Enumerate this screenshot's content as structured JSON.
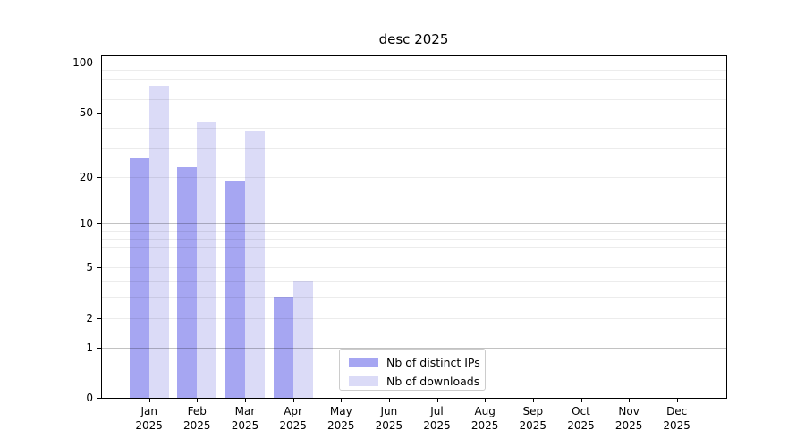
{
  "page": {
    "background": "#ffffff"
  },
  "chart_data": {
    "type": "bar",
    "title": "desc 2025",
    "categories": [
      "Jan",
      "Feb",
      "Mar",
      "Apr",
      "May",
      "Jun",
      "Jul",
      "Aug",
      "Sep",
      "Oct",
      "Nov",
      "Dec"
    ],
    "year_label": "2025",
    "series": [
      {
        "name": "Nb of distinct IPs",
        "color": "#a6a6f2",
        "values": [
          26,
          23,
          19,
          3,
          0,
          0,
          0,
          0,
          0,
          0,
          0,
          0
        ]
      },
      {
        "name": "Nb of downloads",
        "color": "#dbdbf7",
        "values": [
          72,
          43,
          38,
          4,
          0,
          0,
          0,
          0,
          0,
          0,
          0,
          0
        ]
      }
    ],
    "yscale": "log1p",
    "ylim": [
      0,
      110
    ],
    "yticks": [
      0,
      1,
      2,
      5,
      10,
      20,
      50,
      100
    ],
    "major_gridlines": [
      1,
      10,
      100
    ],
    "minor_gridlines": [
      2,
      3,
      4,
      5,
      6,
      7,
      8,
      9,
      20,
      30,
      40,
      60,
      70,
      80,
      90
    ],
    "grid": "horizontal",
    "legend": {
      "position": "bottom-center"
    }
  }
}
